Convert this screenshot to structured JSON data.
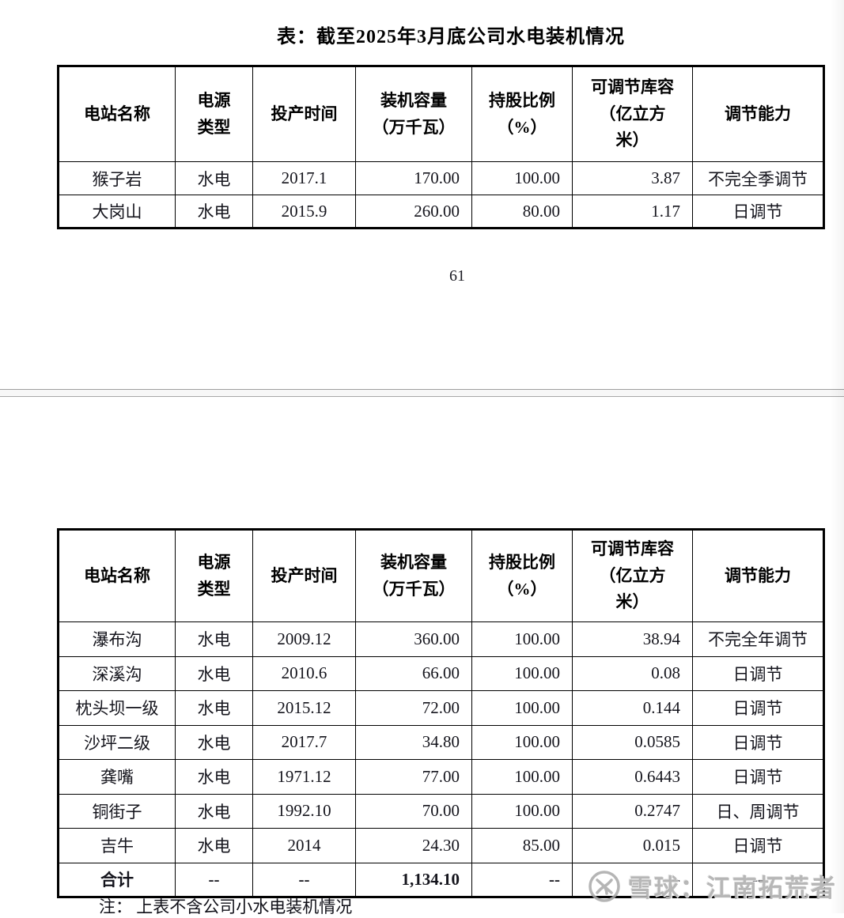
{
  "table_headers": [
    "电站名称",
    "电源\n类型",
    "投产时间",
    "装机容量\n（万千瓦）",
    "持股比例\n（%）",
    "可调节库容\n（亿立方\n米）",
    "调节能力"
  ],
  "page1": {
    "title": "表：截至2025年3月底公司水电装机情况",
    "page_number": "61",
    "table_rows": [
      [
        "猴子岩",
        "水电",
        "2017.1",
        "170.00",
        "100.00",
        "3.87",
        "不完全季调节"
      ],
      [
        "大岗山",
        "水电",
        "2015.9",
        "260.00",
        "80.00",
        "1.17",
        "日调节"
      ]
    ]
  },
  "page2": {
    "table_rows": [
      [
        "瀑布沟",
        "水电",
        "2009.12",
        "360.00",
        "100.00",
        "38.94",
        "不完全年调节"
      ],
      [
        "深溪沟",
        "水电",
        "2010.6",
        "66.00",
        "100.00",
        "0.08",
        "日调节"
      ],
      [
        "枕头坝一级",
        "水电",
        "2015.12",
        "72.00",
        "100.00",
        "0.144",
        "日调节"
      ],
      [
        "沙坪二级",
        "水电",
        "2017.7",
        "34.80",
        "100.00",
        "0.0585",
        "日调节"
      ],
      [
        "龚嘴",
        "水电",
        "1971.12",
        "77.00",
        "100.00",
        "0.6443",
        "日调节"
      ],
      [
        "铜街子",
        "水电",
        "1992.10",
        "70.00",
        "100.00",
        "0.2747",
        "日、周调节"
      ],
      [
        "吉牛",
        "水电",
        "2014",
        "24.30",
        "85.00",
        "0.015",
        "日调节"
      ],
      [
        "合计",
        "--",
        "--",
        "1,134.10",
        "--",
        "--",
        "--"
      ]
    ],
    "note": "注： 上表不含公司小水电装机情况"
  },
  "watermark": {
    "text": "雪球：江南拓荒者",
    "logo_icon": "xueqiu-logo-icon",
    "color": "#a8a8a8"
  },
  "colors": {
    "table_border": "#000000",
    "divider_line": "#9e9e9e",
    "text": "#14141c"
  }
}
